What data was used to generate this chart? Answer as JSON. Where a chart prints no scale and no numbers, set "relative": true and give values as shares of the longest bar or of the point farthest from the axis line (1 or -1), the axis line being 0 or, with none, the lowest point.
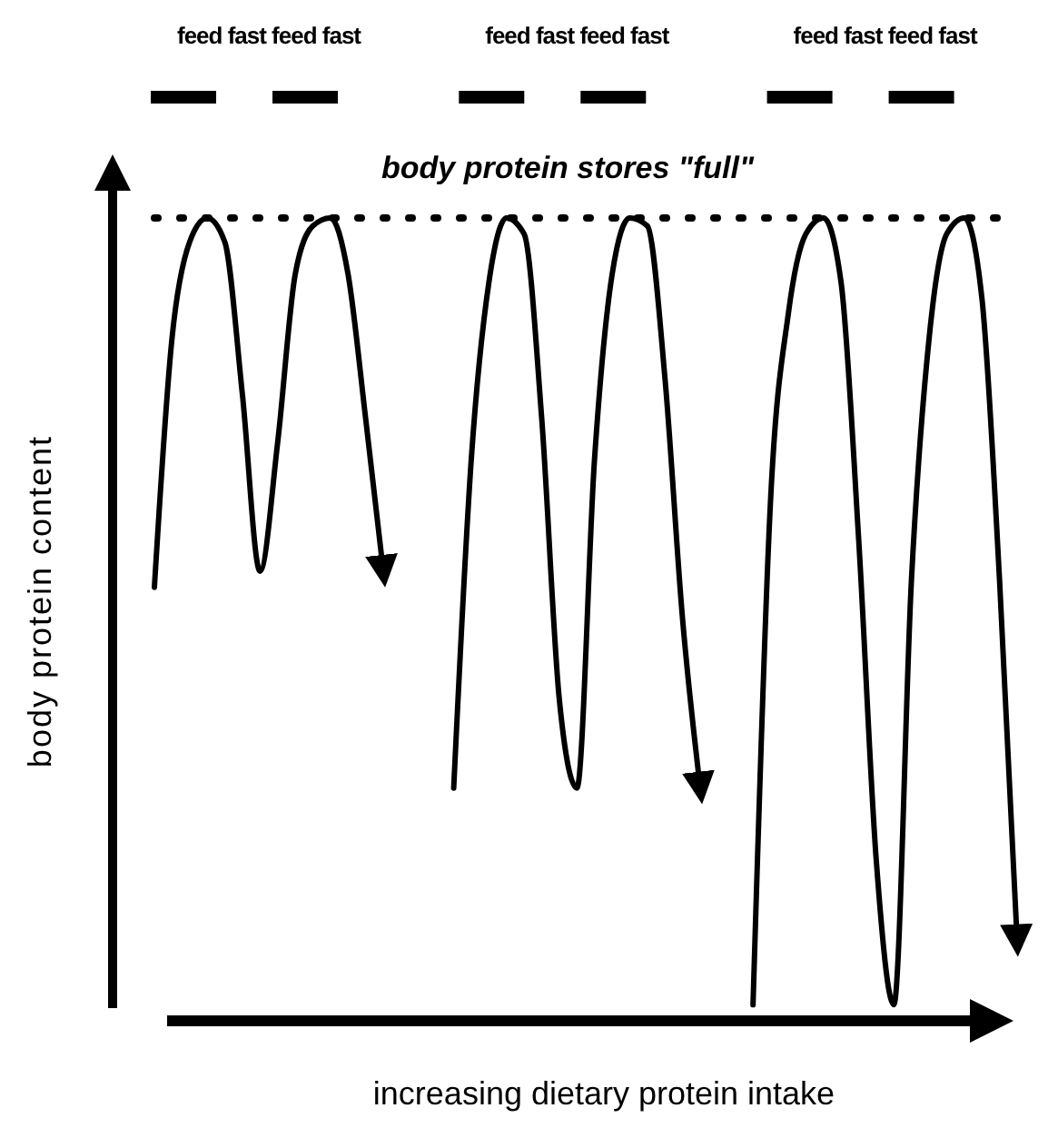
{
  "chart_data": {
    "type": "line",
    "relative": true,
    "xlabel": "increasing dietary protein intake",
    "ylabel": "body protein content",
    "categories": [
      null,
      null,
      null,
      null,
      null,
      null,
      null,
      null,
      null,
      null,
      null,
      null,
      null,
      null,
      null,
      null,
      null,
      null,
      null,
      null,
      null,
      null,
      null,
      null,
      null,
      null,
      null,
      null,
      null,
      null,
      null,
      null,
      null,
      null,
      null,
      null,
      null,
      null,
      null,
      null,
      null,
      null,
      null,
      null,
      null,
      null,
      null,
      null,
      null,
      null
    ],
    "series": [
      {
        "color": "#000000",
        "values": [
          0.54,
          0.85,
          0.97,
          1.0,
          0.97,
          0.78,
          0.56,
          0.72,
          0.93,
          0.99,
          1.0,
          0.93,
          0.75,
          0.56,
          null,
          null,
          null,
          null,
          null,
          null,
          null,
          null,
          null,
          null,
          null,
          null,
          null,
          null,
          null,
          null,
          null,
          null,
          null,
          null,
          null,
          null,
          null,
          null,
          null,
          null,
          null,
          null,
          null,
          null,
          null,
          null,
          null,
          null,
          null,
          null
        ]
      },
      {
        "color": "#000000",
        "values": [
          null,
          null,
          null,
          null,
          null,
          null,
          null,
          null,
          null,
          null,
          null,
          null,
          null,
          null,
          null,
          null,
          null,
          0.29,
          0.7,
          0.92,
          1.0,
          0.98,
          0.75,
          0.4,
          0.29,
          0.7,
          0.93,
          1.0,
          0.99,
          0.8,
          0.5,
          0.29,
          null,
          null,
          null,
          null,
          null,
          null,
          null,
          null,
          null,
          null,
          null,
          null,
          null,
          null,
          null,
          null,
          null,
          null
        ]
      },
      {
        "color": "#000000",
        "values": [
          null,
          null,
          null,
          null,
          null,
          null,
          null,
          null,
          null,
          null,
          null,
          null,
          null,
          null,
          null,
          null,
          null,
          null,
          null,
          null,
          null,
          null,
          null,
          null,
          null,
          null,
          null,
          null,
          null,
          null,
          null,
          null,
          null,
          null,
          0.02,
          0.65,
          0.88,
          0.98,
          1.0,
          0.92,
          0.6,
          0.2,
          0.02,
          0.55,
          0.85,
          0.98,
          1.0,
          0.9,
          0.55,
          0.1
        ]
      }
    ],
    "ref_lines": [
      {
        "axis": "y",
        "value": 1,
        "label": "body protein stores \"full\"",
        "line_style": "dotted"
      }
    ],
    "annotations": [
      "feed fast feed fast",
      "feed fast feed fast",
      "feed fast feed fast"
    ],
    "marker": "none",
    "line_style": "solid",
    "grid": false
  }
}
